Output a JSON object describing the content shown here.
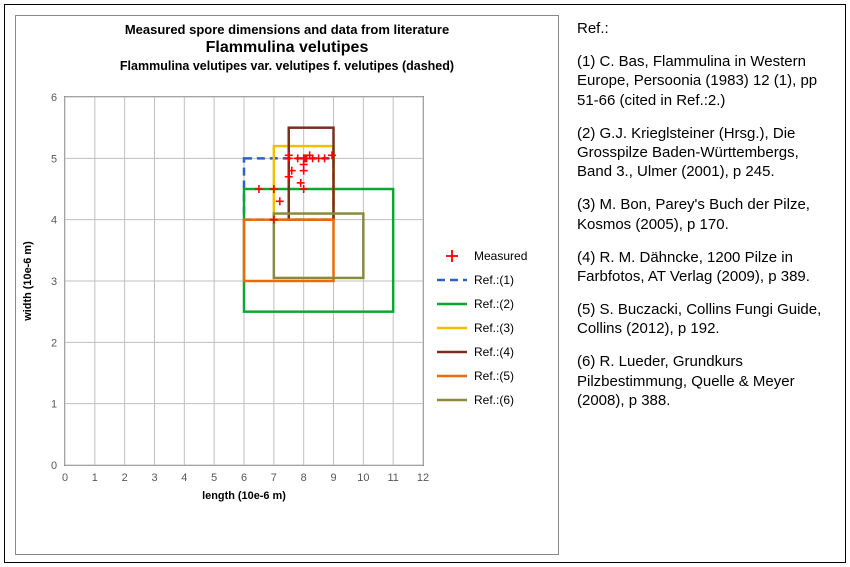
{
  "chart": {
    "type": "scatter-with-range-boxes",
    "title_line1": "Measured spore dimensions and data from literature",
    "title_line2": "Flammulina velutipes",
    "title_line3": "Flammulina velutipes var. velutipes f. velutipes (dashed)",
    "title_fontsize_1": 13,
    "title_fontsize_2": 16,
    "title_fontsize_3": 12.5,
    "xlabel": "length (10e-6 m)",
    "ylabel": "width (10e-6 m)",
    "label_fontsize": 11,
    "xlim": [
      0,
      12
    ],
    "ylim": [
      0,
      6
    ],
    "xtick_step": 1,
    "ytick_step": 1,
    "background_color": "#ffffff",
    "grid_color": "#bfbfbf",
    "axis_text_color": "#575757",
    "measured": {
      "marker": "+",
      "color": "#ff0000",
      "marker_size": 8,
      "marker_linewidth": 1.6,
      "points": [
        [
          6.5,
          4.5
        ],
        [
          7.0,
          4.0
        ],
        [
          7.0,
          4.5
        ],
        [
          7.2,
          4.3
        ],
        [
          7.5,
          4.7
        ],
        [
          7.5,
          5.0
        ],
        [
          7.5,
          5.05
        ],
        [
          7.6,
          4.8
        ],
        [
          7.8,
          5.0
        ],
        [
          7.9,
          4.6
        ],
        [
          8.0,
          4.8
        ],
        [
          8.0,
          4.9
        ],
        [
          8.0,
          5.0
        ],
        [
          8.05,
          5.0
        ],
        [
          8.1,
          5.0
        ],
        [
          8.2,
          5.05
        ],
        [
          8.3,
          5.0
        ],
        [
          8.5,
          5.0
        ],
        [
          8.7,
          5.0
        ],
        [
          8.95,
          5.05
        ],
        [
          8.0,
          4.5
        ]
      ]
    },
    "refs": [
      {
        "id": 1,
        "label": "Ref.:(1)",
        "x": [
          6,
          9
        ],
        "y": [
          4,
          5
        ],
        "color": "#2e61c0",
        "linewidth": 2.5,
        "dash": "8,5"
      },
      {
        "id": 2,
        "label": "Ref.:(2)",
        "x": [
          6,
          11
        ],
        "y": [
          2.5,
          4.5
        ],
        "color": "#0da635",
        "linewidth": 2.5,
        "dash": null
      },
      {
        "id": 3,
        "label": "Ref.:(3)",
        "x": [
          7,
          9
        ],
        "y": [
          4,
          5.2
        ],
        "color": "#f0c000",
        "linewidth": 2.5,
        "dash": null
      },
      {
        "id": 4,
        "label": "Ref.:(4)",
        "x": [
          7.5,
          9
        ],
        "y": [
          4,
          5.5
        ],
        "color": "#7a2e1e",
        "linewidth": 2.5,
        "dash": null
      },
      {
        "id": 5,
        "label": "Ref.:(5)",
        "x": [
          6,
          9
        ],
        "y": [
          3,
          4
        ],
        "color": "#e86c0a",
        "linewidth": 2.5,
        "dash": null
      },
      {
        "id": 6,
        "label": "Ref.:(6)",
        "x": [
          7,
          10
        ],
        "y": [
          3.05,
          4.1
        ],
        "color": "#8a8a3b",
        "linewidth": 2.5,
        "dash": null
      }
    ],
    "legend": {
      "position": "right-middle",
      "measured_label": "Measured",
      "fontsize": 12
    }
  },
  "references": {
    "heading": "Ref.:",
    "items": [
      "(1) C. Bas, Flammulina in Western Europe, Persoonia (1983) 12 (1), pp 51-66 (cited in Ref.:2.)",
      "(2) G.J. Krieglsteiner (Hrsg.), Die Grosspilze Baden-Württembergs, Band 3., Ulmer (2001), p 245.",
      "(3) M. Bon, Parey's Buch der Pilze, Kosmos (2005), p 170.",
      "(4) R. M. Dähncke, 1200 Pilze in Farbfotos, AT Verlag (2009), p 389.",
      "(5) S. Buczacki, Collins Fungi Guide, Collins (2012), p 192.",
      "(6) R.  Lueder, Grundkurs Pilzbestimmung, Quelle & Meyer (2008), p 388."
    ],
    "fontsize": 15
  }
}
